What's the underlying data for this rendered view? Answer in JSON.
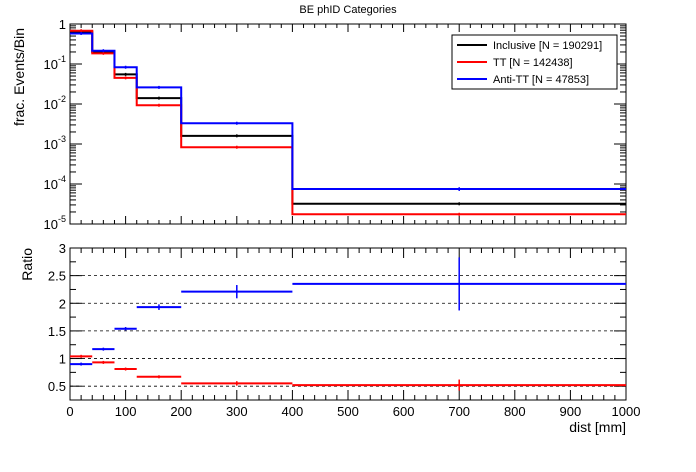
{
  "title": "BE phID Categories",
  "colors": {
    "inclusive": "#000000",
    "tt": "#ff0000",
    "antitt": "#0000ff",
    "axis": "#000000",
    "grid": "#000000"
  },
  "chart_data": [
    {
      "type": "line",
      "panel": "top",
      "title": "BE phID Categories",
      "xlabel": "",
      "ylabel": "frac. Events/Bin",
      "yscale": "log",
      "xlim": [
        0,
        1000
      ],
      "ylim": [
        1e-05,
        1
      ],
      "ytick_labels": [
        "10^-5",
        "10^-4",
        "10^-3",
        "10^-2",
        "10^-1",
        "1"
      ],
      "legend_position": "top-right",
      "bin_edges": [
        0,
        40,
        80,
        120,
        200,
        400,
        1000
      ],
      "series": [
        {
          "name": "Inclusive [N = 190291]",
          "color": "#000000",
          "values": [
            0.65,
            0.2,
            0.055,
            0.014,
            0.0016,
            3.2e-05
          ],
          "errors": [
            0.0,
            0.0,
            0.002,
            0.0005,
            5e-05,
            2e-06
          ]
        },
        {
          "name": "TT [N = 142438]",
          "color": "#ff0000",
          "values": [
            0.68,
            0.185,
            0.045,
            0.0093,
            0.00083,
            1.75e-05
          ],
          "errors": [
            0.0,
            0.0,
            0.002,
            0.0004,
            3e-05,
            1.5e-06
          ]
        },
        {
          "name": "Anti-TT [N = 47853]",
          "color": "#0000ff",
          "values": [
            0.58,
            0.215,
            0.083,
            0.026,
            0.0033,
            7.5e-05
          ],
          "errors": [
            0.0,
            0.0,
            0.003,
            0.001,
            0.0001,
            8e-06
          ]
        }
      ]
    },
    {
      "type": "line",
      "panel": "bottom",
      "xlabel": "dist [mm]",
      "ylabel": "Ratio",
      "xlim": [
        0,
        1000
      ],
      "ylim": [
        0.25,
        3
      ],
      "yticks": [
        0.5,
        1,
        1.5,
        2,
        2.5,
        3
      ],
      "ytick_labels": [
        "0.5",
        "1",
        "1.5",
        "2",
        "2.5",
        "3"
      ],
      "xticks": [
        0,
        100,
        200,
        300,
        400,
        500,
        600,
        700,
        800,
        900,
        1000
      ],
      "xtick_labels": [
        "0",
        "100",
        "200",
        "300",
        "400",
        "500",
        "600",
        "700",
        "800",
        "900",
        "1000"
      ],
      "grid_lines_y": [
        0.5,
        1,
        1.5,
        2,
        2.5
      ],
      "grid": true,
      "bin_edges": [
        0,
        40,
        80,
        120,
        200,
        400,
        1000
      ],
      "series": [
        {
          "color": "#ff0000",
          "values": [
            1.04,
            0.93,
            0.81,
            0.67,
            0.55,
            0.52
          ],
          "errors": [
            0.0,
            0.01,
            0.015,
            0.02,
            0.04,
            0.1
          ]
        },
        {
          "color": "#0000ff",
          "values": [
            0.9,
            1.17,
            1.54,
            1.93,
            2.21,
            2.35
          ],
          "errors": [
            0.0,
            0.01,
            0.03,
            0.05,
            0.12,
            0.48
          ]
        }
      ]
    }
  ]
}
